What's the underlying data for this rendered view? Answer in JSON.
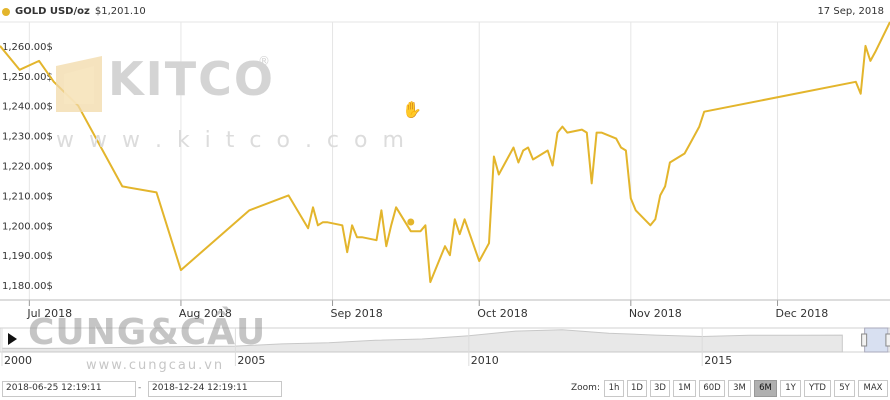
{
  "header": {
    "series_name": "GOLD USD/oz",
    "current_price": "$1,201.10",
    "date": "17 Sep, 2018",
    "series_color": "#e3b52c"
  },
  "watermark": {
    "brand": "KITCO",
    "registered": "®",
    "url": "w w w . k i t c o . c o m",
    "overlay_brand": "CUNG&CẦU",
    "overlay_url": "www.cungcau.vn"
  },
  "chart_data": {
    "type": "line",
    "series": [
      {
        "name": "GOLD USD/oz",
        "color": "#e3b52c",
        "x": [
          "2018-06-25",
          "2018-06-29",
          "2018-07-03",
          "2018-07-06",
          "2018-07-11",
          "2018-07-20",
          "2018-07-27",
          "2018-08-01",
          "2018-08-15",
          "2018-08-23",
          "2018-08-27",
          "2018-08-28",
          "2018-08-29",
          "2018-08-30",
          "2018-08-31",
          "2018-09-03",
          "2018-09-04",
          "2018-09-05",
          "2018-09-06",
          "2018-09-07",
          "2018-09-10",
          "2018-09-11",
          "2018-09-12",
          "2018-09-13",
          "2018-09-14",
          "2018-09-17",
          "2018-09-18",
          "2018-09-19",
          "2018-09-20",
          "2018-09-21",
          "2018-09-24",
          "2018-09-25",
          "2018-09-26",
          "2018-09-27",
          "2018-09-28",
          "2018-10-01",
          "2018-10-02",
          "2018-10-03",
          "2018-10-04",
          "2018-10-05",
          "2018-10-08",
          "2018-10-09",
          "2018-10-10",
          "2018-10-11",
          "2018-10-12",
          "2018-10-15",
          "2018-10-16",
          "2018-10-17",
          "2018-10-18",
          "2018-10-19",
          "2018-10-22",
          "2018-10-23",
          "2018-10-24",
          "2018-10-25",
          "2018-10-26",
          "2018-10-29",
          "2018-10-30",
          "2018-10-31",
          "2018-11-01",
          "2018-11-02",
          "2018-11-05",
          "2018-11-06",
          "2018-11-07",
          "2018-11-08",
          "2018-11-09",
          "2018-11-12",
          "2018-11-13",
          "2018-11-14",
          "2018-11-15",
          "2018-11-16",
          "2018-12-17",
          "2018-12-18",
          "2018-12-19",
          "2018-12-20",
          "2018-12-21",
          "2018-12-24"
        ],
        "y": [
          1260,
          1252,
          1255,
          1248,
          1240,
          1213,
          1211,
          1185,
          1205,
          1210,
          1199,
          1206,
          1200,
          1201,
          1201,
          1200,
          1191,
          1200,
          1196,
          1196,
          1195,
          1205,
          1193,
          1200,
          1206,
          1198,
          1198,
          1198,
          1200,
          1181,
          1193,
          1190,
          1202,
          1197,
          1202,
          1188,
          1191,
          1194,
          1223,
          1217,
          1226,
          1221,
          1225,
          1226,
          1222,
          1225,
          1220,
          1231,
          1233,
          1231,
          1232,
          1231,
          1214,
          1231,
          1231,
          1229,
          1226,
          1225,
          1209,
          1205,
          1200,
          1202,
          1210,
          1213,
          1221,
          1224,
          1227,
          1230,
          1233,
          1238,
          1248,
          1244,
          1260,
          1255,
          1258,
          1268
        ]
      }
    ],
    "x_range": [
      "2018-06-25",
      "2018-12-24"
    ],
    "y_range": [
      1175,
      1268
    ],
    "yticks": [
      1180,
      1190,
      1200,
      1210,
      1220,
      1230,
      1240,
      1250,
      1260
    ],
    "ytick_labels": [
      "1,180.00$",
      "1,190.00$",
      "1,200.00$",
      "1,210.00$",
      "1,220.00$",
      "1,230.00$",
      "1,240.00$",
      "1,250.00$",
      "1,260.00$"
    ],
    "xticks": [
      "2018-07-01",
      "2018-08-01",
      "2018-09-01",
      "2018-10-01",
      "2018-11-01",
      "2018-12-01"
    ],
    "xtick_labels": [
      "Jul 2018",
      "Aug 2018",
      "Sep 2018",
      "Oct 2018",
      "Nov 2018",
      "Dec 2018"
    ],
    "marker": {
      "x": "2018-09-17",
      "y": 1201.1
    },
    "grid": "vertical"
  },
  "navigator": {
    "year_ticks": [
      2000,
      2005,
      2010,
      2015
    ],
    "year_labels": [
      "2000",
      "2005",
      "2010",
      "2015"
    ],
    "year_range": [
      2000,
      2018.98
    ],
    "history_years": [
      2000,
      2001,
      2002,
      2003,
      2004,
      2005,
      2006,
      2007,
      2008,
      2009,
      2010,
      2011,
      2012,
      2013,
      2014,
      2015,
      2016,
      2017,
      2018
    ],
    "history_values": [
      280,
      272,
      310,
      365,
      410,
      445,
      605,
      700,
      875,
      975,
      1225,
      1570,
      1670,
      1410,
      1265,
      1160,
      1250,
      1255,
      1270
    ],
    "selection": [
      "2018-06-25",
      "2018-12-24"
    ]
  },
  "range_selector": {
    "from": "2018-06-25 12:19:11",
    "separator": "-",
    "to": "2018-12-24 12:19:11",
    "zoom_label": "Zoom:",
    "buttons": [
      "1h",
      "1D",
      "3D",
      "1M",
      "60D",
      "3M",
      "6M",
      "1Y",
      "YTD",
      "5Y",
      "MAX"
    ],
    "active": "6M"
  }
}
